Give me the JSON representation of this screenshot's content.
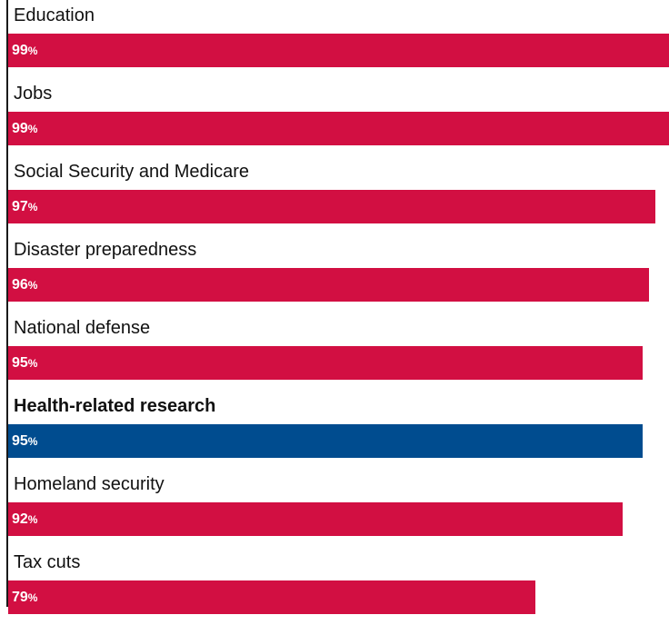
{
  "chart_data": {
    "type": "bar",
    "orientation": "horizontal",
    "categories": [
      "Education",
      "Jobs",
      "Social Security and Medicare",
      "Disaster preparedness",
      "National defense",
      "Health-related research",
      "Homeland security",
      "Tax cuts"
    ],
    "values": [
      99,
      99,
      97,
      96,
      95,
      95,
      92,
      79
    ],
    "value_suffix": "%",
    "highlight_category": "Health-related research",
    "xlim": [
      0,
      99
    ],
    "grid": false,
    "legend": "none",
    "colors": {
      "default": "#d20f42",
      "highlight": "#004c8f",
      "label_text": "#ffffff"
    }
  }
}
